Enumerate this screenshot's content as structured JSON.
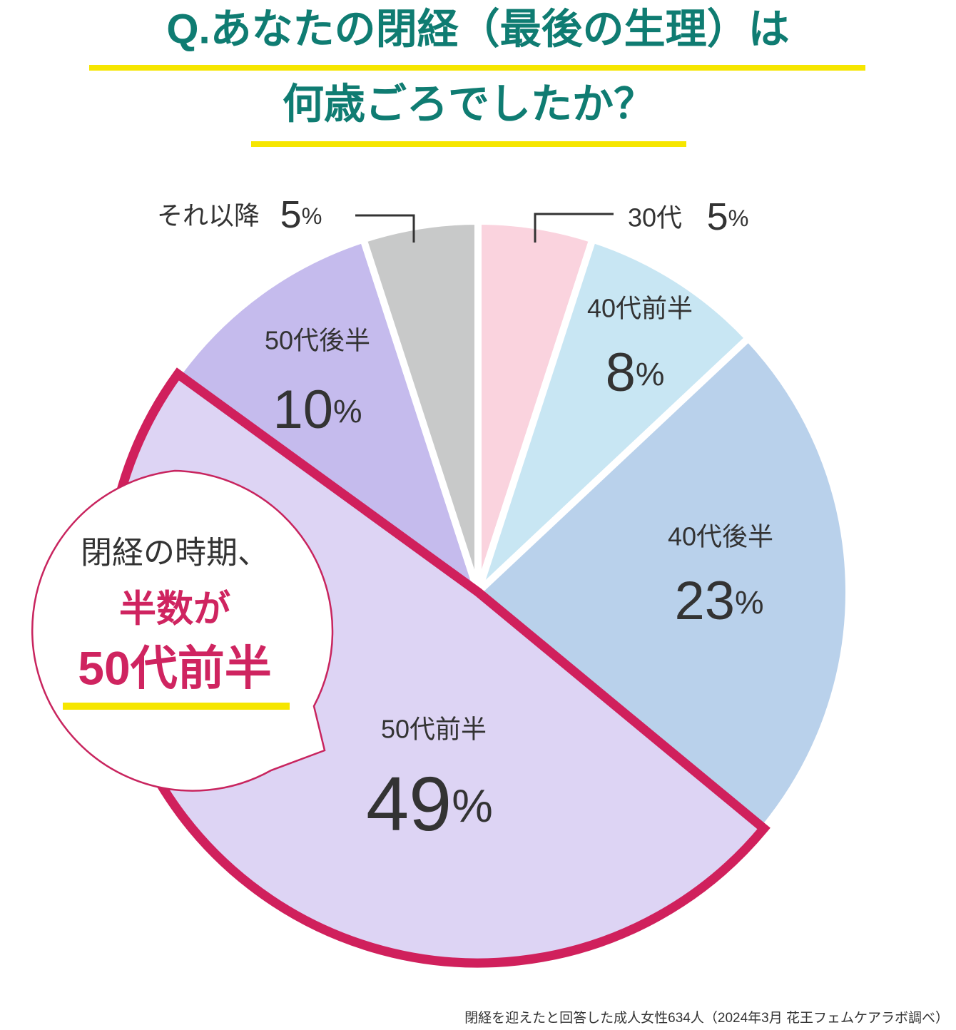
{
  "chart_data": {
    "type": "pie",
    "title": [
      "Q.あなたの閉経（最後の生理）は",
      "何歳ごろでしたか？"
    ],
    "categories": [
      "30代",
      "40代前半",
      "40代後半",
      "50代前半",
      "50代後半",
      "それ以降"
    ],
    "values": [
      5,
      8,
      23,
      49,
      10,
      5
    ],
    "value_labels": [
      "5%",
      "8%",
      "23%",
      "49%",
      "10%",
      "5%"
    ],
    "colors": [
      "#fad3de",
      "#c8e6f3",
      "#b9d1eb",
      "#ddd4f4",
      "#c5bbed",
      "#c8c9c9"
    ],
    "highlight": 3,
    "callout": [
      "閉経の時期、",
      "半数が",
      "50代前半"
    ],
    "note": "閉経を迎えたと回答した成人女性634人（2024年3月 花王フェムケアラボ調べ）"
  }
}
